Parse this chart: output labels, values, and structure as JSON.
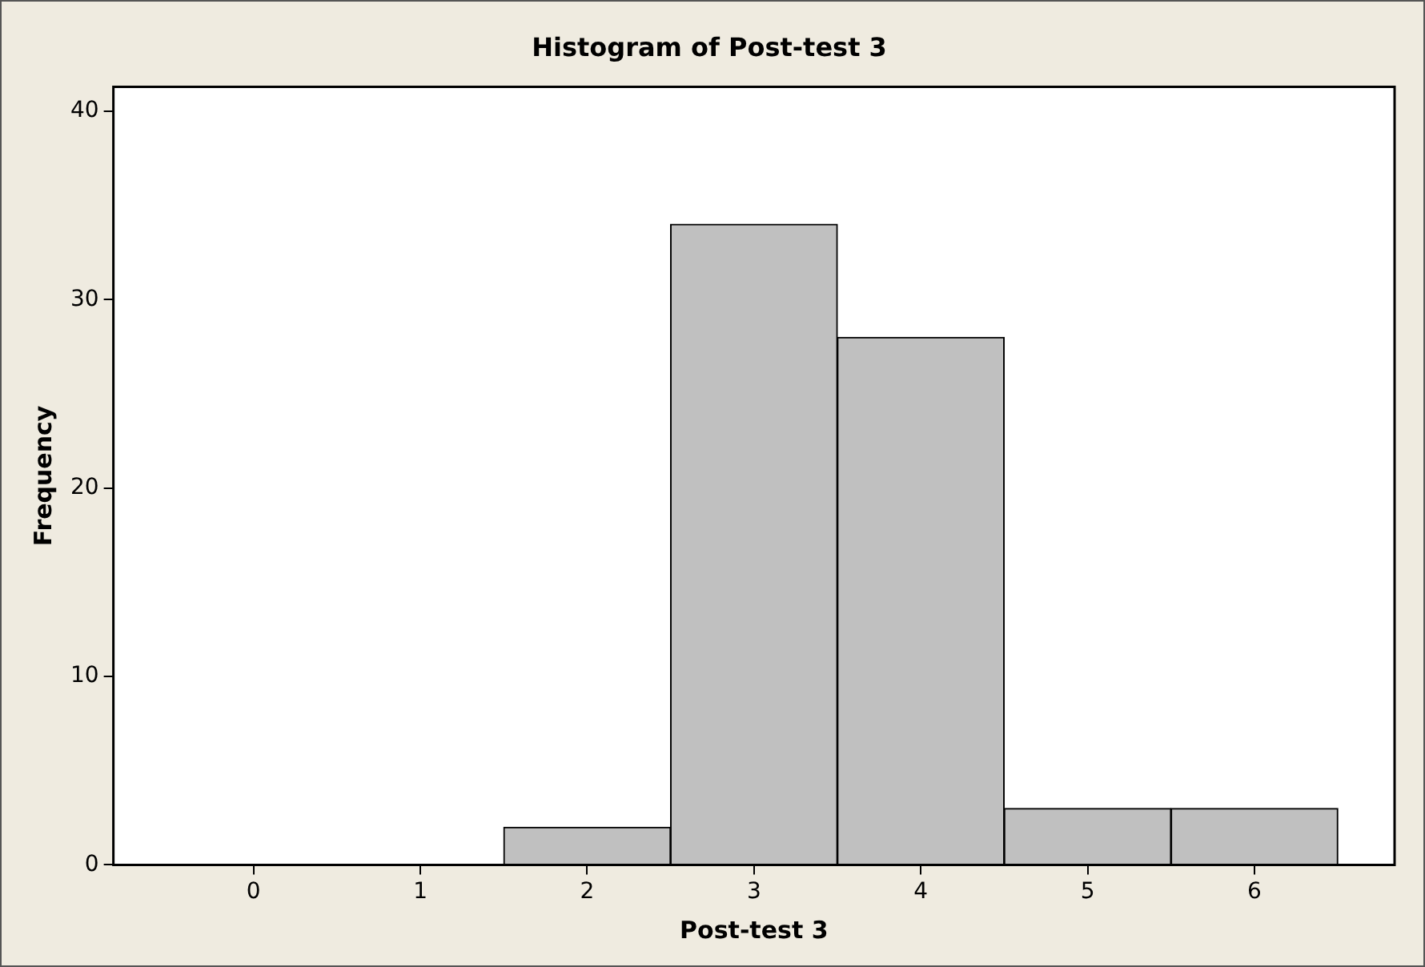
{
  "chart_data": {
    "type": "histogram",
    "title": "Histogram of Post-test 3",
    "xlabel": "Post-test 3",
    "ylabel": "Frequency",
    "bins": [
      -0.5,
      0.5,
      1.5,
      2.5,
      3.5,
      4.5,
      5.5,
      6.5
    ],
    "values": [
      0,
      0,
      2,
      34,
      28,
      3,
      3
    ],
    "color": "#c0c0c0",
    "xlim": [
      -0.84,
      6.84
    ],
    "xticks": [
      0,
      1,
      2,
      3,
      4,
      5,
      6
    ],
    "ylim": [
      0,
      41.3
    ],
    "yticks": [
      0,
      10,
      20,
      30,
      40
    ]
  }
}
